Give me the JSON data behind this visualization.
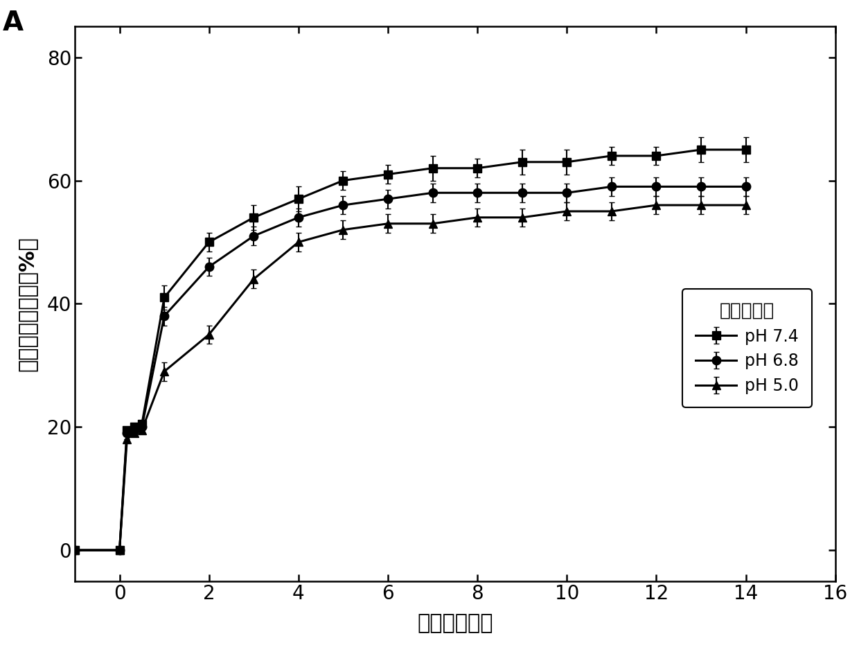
{
  "title_label": "A",
  "xlabel": "时间（小时）",
  "ylabel": "累计释放百分比（%）",
  "legend_title": "双氯芬酸钓",
  "xlim": [
    -1,
    16
  ],
  "ylim": [
    -5,
    85
  ],
  "xticks": [
    0,
    2,
    4,
    6,
    8,
    10,
    12,
    14,
    16
  ],
  "yticks": [
    0,
    20,
    40,
    60,
    80
  ],
  "series": [
    {
      "label": "pH 7.4",
      "marker": "s",
      "x": [
        -1,
        0,
        0.167,
        0.333,
        0.5,
        1,
        2,
        3,
        4,
        5,
        6,
        7,
        8,
        9,
        10,
        11,
        12,
        13,
        14
      ],
      "y": [
        0,
        0,
        19.5,
        20,
        20.5,
        41,
        50,
        54,
        57,
        60,
        61,
        62,
        62,
        63,
        63,
        64,
        64,
        65,
        65
      ],
      "yerr": [
        0,
        0,
        0,
        0,
        0,
        2,
        1.5,
        2,
        2,
        1.5,
        1.5,
        2,
        1.5,
        2,
        2,
        1.5,
        1.5,
        2,
        2
      ]
    },
    {
      "label": "pH 6.8",
      "marker": "o",
      "x": [
        -1,
        0,
        0.167,
        0.333,
        0.5,
        1,
        2,
        3,
        4,
        5,
        6,
        7,
        8,
        9,
        10,
        11,
        12,
        13,
        14
      ],
      "y": [
        0,
        0,
        19,
        19.5,
        20,
        38,
        46,
        51,
        54,
        56,
        57,
        58,
        58,
        58,
        58,
        59,
        59,
        59,
        59
      ],
      "yerr": [
        0,
        0,
        0,
        0,
        0,
        1.5,
        1.5,
        1.5,
        1.5,
        1.5,
        1.5,
        1.5,
        1.5,
        1.5,
        1.5,
        1.5,
        1.5,
        1.5,
        1.5
      ]
    },
    {
      "label": "pH 5.0",
      "marker": "^",
      "x": [
        -1,
        0,
        0.167,
        0.333,
        0.5,
        1,
        2,
        3,
        4,
        5,
        6,
        7,
        8,
        9,
        10,
        11,
        12,
        13,
        14
      ],
      "y": [
        0,
        0,
        18,
        19,
        19.5,
        29,
        35,
        44,
        50,
        52,
        53,
        53,
        54,
        54,
        55,
        55,
        56,
        56,
        56
      ],
      "yerr": [
        0,
        0,
        0,
        0,
        0,
        1.5,
        1.5,
        1.5,
        1.5,
        1.5,
        1.5,
        1.5,
        1.5,
        1.5,
        1.5,
        1.5,
        1.5,
        1.5,
        1.5
      ]
    }
  ],
  "line_color": "black",
  "linewidth": 2.2,
  "markersize": 9,
  "capsize": 3,
  "elinewidth": 1.5,
  "background_color": "white",
  "legend_fontsize": 17,
  "legend_title_fontsize": 19,
  "axis_fontsize": 22,
  "tick_fontsize": 20,
  "panel_label_fontsize": 28
}
